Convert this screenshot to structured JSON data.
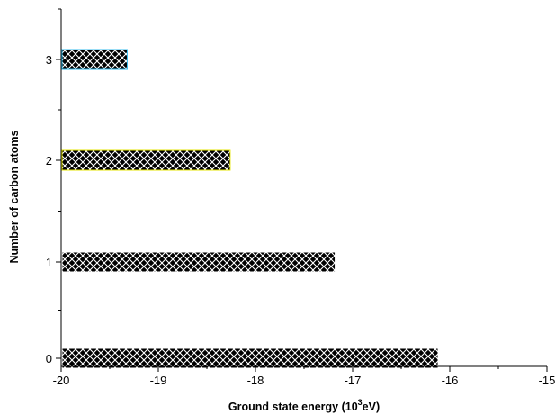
{
  "chart_data": {
    "type": "bar",
    "orientation": "horizontal",
    "categories": [
      "0",
      "1",
      "2",
      "3"
    ],
    "values": [
      -16.12,
      -17.18,
      -18.26,
      -19.32
    ],
    "base": -20,
    "xlabel": "Ground state energy (10",
    "xlabel_sup": "3",
    "xlabel_tail": "eV)",
    "ylabel": "Number of carbon atoms",
    "xlim": [
      -20,
      -15
    ],
    "ylim": [
      0,
      3
    ],
    "x_ticks": [
      "-20",
      "-19",
      "-18",
      "-17",
      "-16",
      "-15"
    ],
    "y_ticks": [
      "0",
      "1",
      "2",
      "3"
    ],
    "grid": false,
    "legend": "none",
    "bar_fill": "black-crosshatch",
    "bar_outline_colors": [
      "#ffffff",
      "#ffffff",
      "#e6e600",
      "#33bbee"
    ],
    "hatch_line_color": "#ffffff",
    "bar_base_color": "#000000"
  }
}
